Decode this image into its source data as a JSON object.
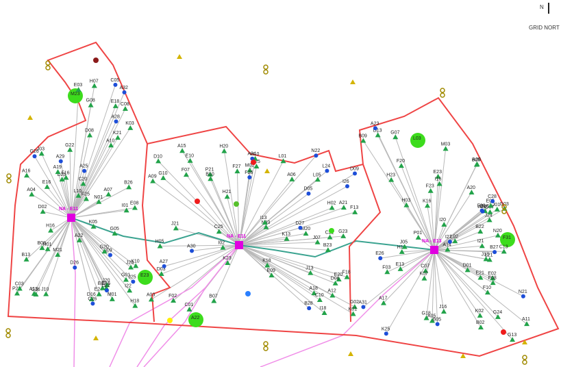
{
  "north_indicator": {
    "symbol": "N",
    "label": "GRID NORT"
  },
  "colors": {
    "boundary": "#ef4444",
    "link": "#b8b8b8",
    "trunk": "#3aa390",
    "feeder": "#f08ee8",
    "hub": "#e000e0",
    "node_green": "#22a34a",
    "node_blue": "#1d4ed8",
    "area": "#3ddc1d"
  },
  "hubs": [
    {
      "id": "hub1",
      "label": "NA - E11"
    },
    {
      "id": "hub2",
      "label": "NA - E11"
    },
    {
      "id": "hub3",
      "label": "NA - E13"
    }
  ],
  "areas": [
    "M23",
    "L03",
    "E23",
    "A22",
    "F31"
  ],
  "nodes": {
    "green": [
      "P22",
      "P21",
      "N20",
      "M21",
      "M20",
      "L21",
      "K21",
      "K23",
      "J24",
      "J23",
      "J21",
      "I21",
      "I22",
      "H21",
      "H23",
      "G22",
      "G23",
      "G24",
      "F25",
      "F27",
      "F23",
      "E24",
      "E25",
      "E23",
      "D25",
      "C25",
      "B25",
      "B26",
      "B23",
      "B22",
      "A22",
      "A21",
      "A20",
      "A19",
      "A18",
      "A17",
      "A16",
      "A15",
      "A14",
      "A13",
      "A12",
      "A11",
      "A10",
      "A09",
      "A08",
      "A07",
      "A06",
      "A05",
      "A04",
      "A03",
      "B02",
      "C03",
      "C01",
      "D01",
      "D02",
      "D03",
      "E02",
      "E03",
      "F02",
      "F03",
      "G01",
      "G02",
      "G03",
      "H01",
      "H02",
      "H03",
      "I01",
      "I02",
      "J01",
      "J03",
      "K01",
      "K02",
      "K03",
      "L01",
      "L02",
      "M01",
      "M02",
      "M03",
      "N01",
      "N03",
      "P01",
      "B08",
      "B10",
      "B16",
      "B13",
      "C10",
      "C13",
      "C16",
      "D10",
      "D13",
      "D16",
      "E10",
      "E13",
      "E16",
      "F13",
      "F10",
      "F16",
      "G10",
      "G13",
      "G16",
      "H10",
      "H13",
      "H16",
      "I13",
      "I16",
      "J10",
      "J13",
      "J16",
      "K10",
      "K13",
      "K16",
      "L10",
      "K18",
      "J18",
      "J20",
      "I18",
      "I20",
      "H18",
      "H20",
      "G18",
      "G20",
      "F18",
      "F20",
      "E18",
      "E20",
      "E21",
      "C20",
      "C21",
      "D07",
      "D08",
      "D06",
      "C07",
      "C08",
      "B07",
      "B09",
      "E07",
      "F07",
      "G07",
      "H07",
      "J07",
      "K07",
      "E08",
      "E09",
      "F08",
      "G08",
      "H05",
      "J05",
      "K05",
      "L05",
      "E05",
      "G05"
    ],
    "blue": [
      "N22",
      "N21",
      "L22",
      "L24",
      "K25",
      "J25",
      "I26",
      "I27",
      "G26",
      "F26",
      "E26",
      "D26",
      "D27",
      "C28",
      "C26",
      "B28",
      "B27",
      "A28",
      "A27",
      "A26",
      "A25",
      "A24",
      "A23",
      "A29",
      "A30",
      "A31",
      "A32",
      "D05",
      "B05",
      "C05",
      "D09",
      "F09",
      "I09"
    ]
  }
}
